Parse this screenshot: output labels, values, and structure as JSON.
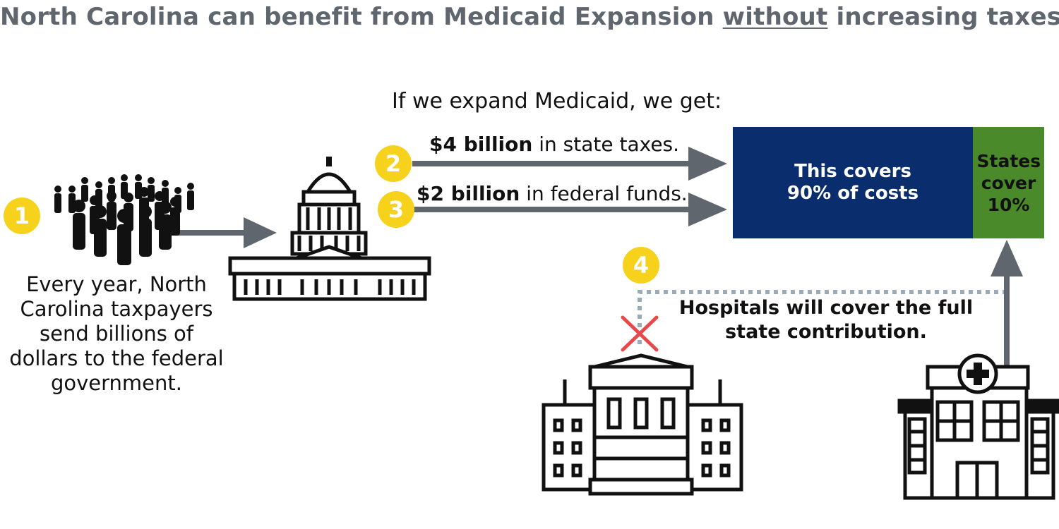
{
  "title": {
    "before": "North Carolina can benefit from Medicaid Expansion ",
    "emphasis": "without",
    "after": " increasing taxes."
  },
  "intro": "If we expand Medicaid, we get:",
  "steps": [
    {
      "number": "1",
      "text": "Every year, North Carolina taxpayers send billions of dollars to the federal government."
    },
    {
      "number": "2",
      "bold": "$4 billion",
      "rest": " in state taxes."
    },
    {
      "number": "3",
      "bold": "$2 billion",
      "rest": " in federal funds."
    },
    {
      "number": "4",
      "text": "Hospitals will cover the full state contribution."
    }
  ],
  "boxes": {
    "federal": "This covers 90% of costs",
    "state": "States cover 10%"
  },
  "colors": {
    "title": "#5f666d",
    "badge": "#f6d21c",
    "arrow": "#5f666d",
    "federal_box": "#0a2d6e",
    "state_box": "#4a8a2a",
    "cross": "#e8484a",
    "dotted_line": "#9aabb8"
  },
  "icons": [
    "crowd-icon",
    "capitol-icon",
    "state-capitol-icon",
    "hospital-icon",
    "cross-mark-icon"
  ]
}
